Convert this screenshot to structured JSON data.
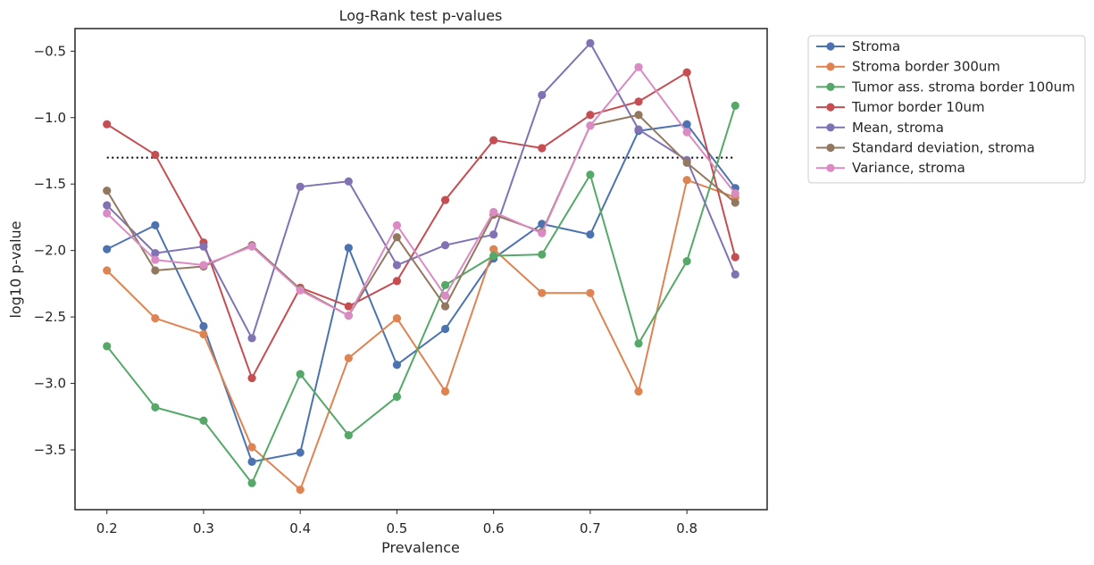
{
  "chart_data": {
    "type": "line",
    "title": "Log-Rank test p-values",
    "xlabel": "Prevalence",
    "ylabel": "log10 p-value",
    "xlim": [
      0.167,
      0.883
    ],
    "ylim": [
      -3.95,
      -0.33
    ],
    "xticks": [
      0.2,
      0.3,
      0.4,
      0.5,
      0.6,
      0.7,
      0.8
    ],
    "xtick_labels": [
      "0.2",
      "0.3",
      "0.4",
      "0.5",
      "0.6",
      "0.7",
      "0.8"
    ],
    "yticks": [
      -0.5,
      -1.0,
      -1.5,
      -2.0,
      -2.5,
      -3.0,
      -3.5
    ],
    "ytick_labels": [
      "−0.5",
      "−1.0",
      "−1.5",
      "−2.0",
      "−2.5",
      "−3.0",
      "−3.5"
    ],
    "grid": false,
    "legend_position": "outside-top-right",
    "x": [
      0.2,
      0.25,
      0.3,
      0.35,
      0.4,
      0.45,
      0.5,
      0.55,
      0.6,
      0.65,
      0.7,
      0.75,
      0.8,
      0.85
    ],
    "reference_line": {
      "y": -1.301,
      "x_range": [
        0.2,
        0.85
      ],
      "style": "dotted",
      "color": "#000000"
    },
    "series": [
      {
        "name": "Stroma",
        "color": "#4c72b0",
        "values": [
          -1.99,
          -1.81,
          -2.57,
          -3.59,
          -3.52,
          -1.98,
          -2.86,
          -2.59,
          -2.06,
          -1.8,
          -1.88,
          -1.1,
          -1.05,
          -1.53
        ]
      },
      {
        "name": "Stroma border 300um",
        "color": "#dd8452",
        "values": [
          -2.15,
          -2.51,
          -2.63,
          -3.48,
          -3.8,
          -2.81,
          -2.51,
          -3.06,
          -1.99,
          -2.32,
          -2.32,
          -3.06,
          -1.47,
          -1.6
        ]
      },
      {
        "name": "Tumor ass. stroma border 100um",
        "color": "#55a868",
        "values": [
          -2.72,
          -3.18,
          -3.28,
          -3.75,
          -2.93,
          -3.39,
          -3.1,
          -2.26,
          -2.04,
          -2.03,
          -1.43,
          -2.7,
          -2.08,
          -0.91
        ]
      },
      {
        "name": "Tumor border 10um",
        "color": "#c44e52",
        "values": [
          -1.05,
          -1.28,
          -1.94,
          -2.96,
          -2.28,
          -2.42,
          -2.23,
          -1.62,
          -1.17,
          -1.23,
          -0.98,
          -0.88,
          -0.66,
          -2.05
        ]
      },
      {
        "name": "Mean, stroma",
        "color": "#8172b3",
        "values": [
          -1.66,
          -2.02,
          -1.97,
          -2.66,
          -1.52,
          -1.48,
          -2.11,
          -1.96,
          -1.88,
          -0.83,
          -0.44,
          -1.09,
          -1.32,
          -2.18
        ]
      },
      {
        "name": "Standard deviation, stroma",
        "color": "#937860",
        "values": [
          -1.55,
          -2.15,
          -2.12,
          -1.96,
          -2.29,
          -2.49,
          -1.9,
          -2.42,
          -1.73,
          -1.86,
          -1.06,
          -0.98,
          -1.34,
          -1.64
        ]
      },
      {
        "name": "Variance, stroma",
        "color": "#da8bc3",
        "values": [
          -1.72,
          -2.07,
          -2.11,
          -1.97,
          -2.3,
          -2.49,
          -1.81,
          -2.34,
          -1.71,
          -1.87,
          -1.06,
          -0.62,
          -1.11,
          -1.57
        ]
      }
    ]
  }
}
